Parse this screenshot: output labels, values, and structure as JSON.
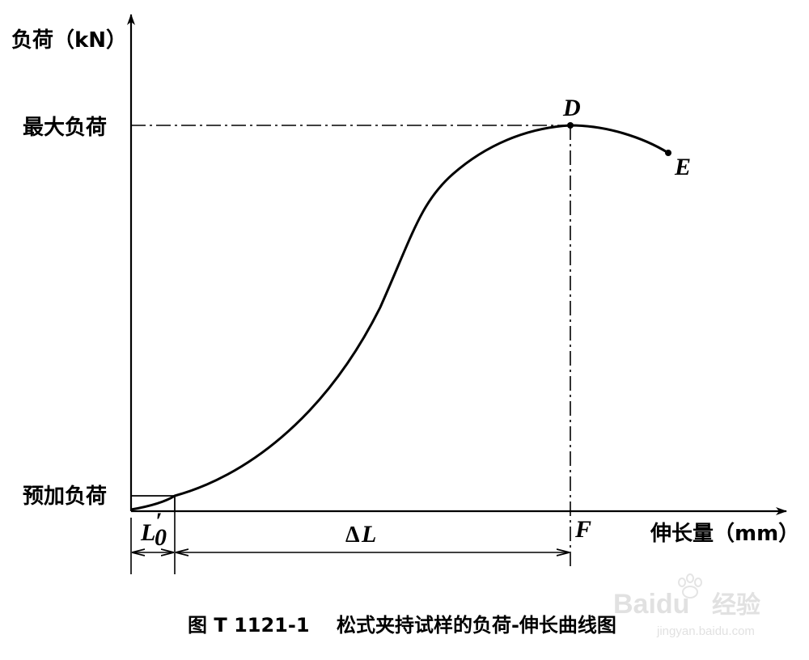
{
  "y_axis_label": "负荷（kN）",
  "x_axis_label": "伸长量（mm）",
  "y_marks": {
    "max_load": "最大负荷",
    "preload": "预加负荷"
  },
  "points": {
    "D": "D",
    "E": "E",
    "F": "F"
  },
  "dims": {
    "l0_base": "L",
    "l0_prime": "′",
    "l0_sub": "0",
    "delta_symbol": "Δ",
    "delta_var": "L"
  },
  "caption": "图 T 1121-1    松式夹持试样的负荷-伸长曲线图",
  "watermark": {
    "brand": "Baidu",
    "cn": "经验",
    "url": "jingyan.baidu.com"
  }
}
